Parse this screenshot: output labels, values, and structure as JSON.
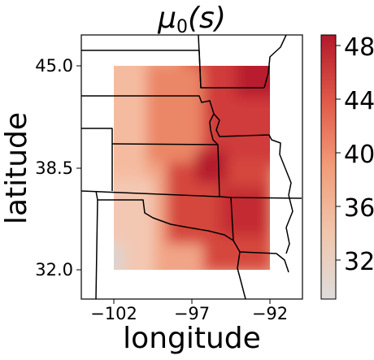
{
  "title_text": "μ",
  "title_sub": "0",
  "title_arg": "(s)",
  "xlabel": "longitude",
  "ylabel": "latitude",
  "x_ticks": [
    {
      "value": -102,
      "label": "−102"
    },
    {
      "value": -97,
      "label": "−97"
    },
    {
      "value": -92,
      "label": "−92"
    }
  ],
  "y_ticks": [
    {
      "value": 45.0,
      "label": "45.0"
    },
    {
      "value": 38.5,
      "label": "38.5"
    },
    {
      "value": 32.0,
      "label": "32.0"
    }
  ],
  "colorbar": {
    "min": 29.5,
    "max": 49.2,
    "ticks": [
      {
        "value": 32,
        "label": "32"
      },
      {
        "value": 36,
        "label": "36"
      },
      {
        "value": 40,
        "label": "40"
      },
      {
        "value": 44,
        "label": "44"
      },
      {
        "value": 48,
        "label": "48"
      }
    ],
    "colors": [
      "#dedcdb",
      "#f1c6ad",
      "#f29d79",
      "#e05a48",
      "#b2182b"
    ]
  },
  "chart_data": {
    "type": "heatmap",
    "title": "μ0(s)",
    "xlabel": "longitude",
    "ylabel": "latitude",
    "xlim": [
      -104.2,
      -90.0
    ],
    "ylim": [
      30.1,
      47.0
    ],
    "grid_extent": {
      "lon": [
        -102,
        -92
      ],
      "lat": [
        32.0,
        45.0
      ]
    },
    "value_range": [
      29.5,
      49.2
    ],
    "peak": {
      "lon": -97.5,
      "lat": 39.0,
      "value": 48.5
    },
    "northeast_value": 49,
    "southwest_corner_value": 30,
    "colormap": "light gray to dark red"
  }
}
